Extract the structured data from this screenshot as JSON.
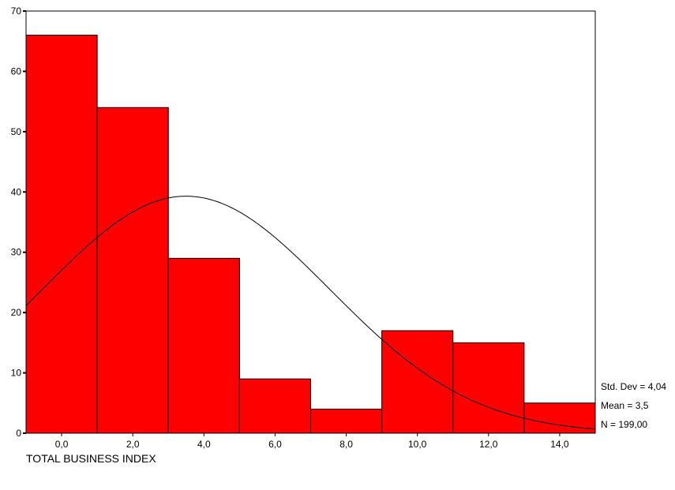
{
  "chart_data": {
    "type": "bar",
    "subtype": "histogram",
    "bins": [
      {
        "from": -1,
        "to": 1,
        "count": 66
      },
      {
        "from": 1,
        "to": 3,
        "count": 54
      },
      {
        "from": 3,
        "to": 5,
        "count": 29
      },
      {
        "from": 5,
        "to": 7,
        "count": 9
      },
      {
        "from": 7,
        "to": 9,
        "count": 4
      },
      {
        "from": 9,
        "to": 11,
        "count": 17
      },
      {
        "from": 11,
        "to": 13,
        "count": 15
      },
      {
        "from": 13,
        "to": 15,
        "count": 5
      }
    ],
    "categories": [
      "0,0",
      "2,0",
      "4,0",
      "6,0",
      "8,0",
      "10,0",
      "12,0",
      "14,0"
    ],
    "values": [
      66,
      54,
      29,
      9,
      4,
      17,
      15,
      5
    ],
    "xlim": [
      -1,
      15
    ],
    "ylim": [
      0,
      70
    ],
    "x_ticks": [
      0,
      2,
      4,
      6,
      8,
      10,
      12,
      14
    ],
    "x_tick_labels": [
      "0,0",
      "2,0",
      "4,0",
      "6,0",
      "8,0",
      "10,0",
      "12,0",
      "14,0"
    ],
    "y_ticks": [
      0,
      10,
      20,
      30,
      40,
      50,
      60,
      70
    ],
    "y_tick_labels": [
      "0",
      "10",
      "20",
      "30",
      "40",
      "50",
      "60",
      "70"
    ],
    "xlabel": "TOTAL BUSINESS INDEX",
    "ylabel": "",
    "title": "",
    "grid": false,
    "bar_color": "#ff0000",
    "curve": {
      "type": "normal",
      "mean": 3.5,
      "std": 4.04,
      "n": 199,
      "bin_width": 2
    },
    "stats": [
      "Std. Dev = 4,04",
      "Mean = 3,5",
      "N = 199,00"
    ]
  }
}
